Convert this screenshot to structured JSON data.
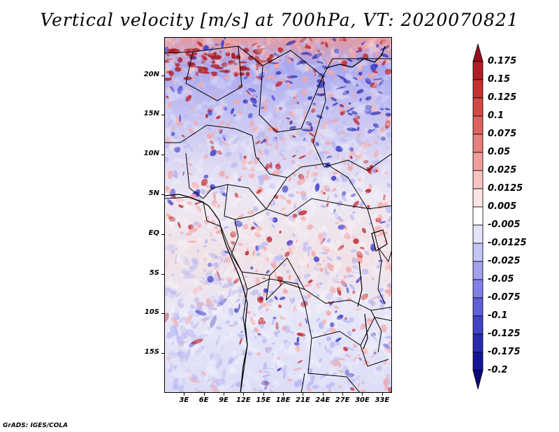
{
  "title": "Vertical velocity [m/s] at 700hPa, VT: 2020070821",
  "credit": "GrADS: IGES/COLA",
  "map": {
    "lat_labels": [
      "20N",
      "15N",
      "10N",
      "5N",
      "EQ",
      "5S",
      "10S",
      "15S"
    ],
    "lat_values": [
      20,
      15,
      10,
      5,
      0,
      -5,
      -10,
      -15
    ],
    "lon_labels": [
      "3E",
      "6E",
      "9E",
      "12E",
      "15E",
      "18E",
      "21E",
      "24E",
      "27E",
      "30E",
      "33E"
    ],
    "lon_values": [
      3,
      6,
      9,
      12,
      15,
      18,
      21,
      24,
      27,
      30,
      33
    ],
    "lat_range": [
      -20,
      24.8
    ],
    "lon_range": [
      0,
      34.5
    ]
  },
  "colorbar": {
    "labels": [
      "0.175",
      "0.15",
      "0.125",
      "0.1",
      "0.075",
      "0.05",
      "0.025",
      "0.0125",
      "0.005",
      "-0.005",
      "-0.0125",
      "-0.025",
      "-0.05",
      "-0.075",
      "-0.1",
      "-0.125",
      "-0.175",
      "-0.2"
    ],
    "colors": [
      "#9c0d1a",
      "#b01f25",
      "#c3332f",
      "#d24a43",
      "#dd6360",
      "#e77f7c",
      "#f09e9b",
      "#f7c3c1",
      "#fbe4e3",
      "#ffffff",
      "#e4e4fb",
      "#c4c4f5",
      "#a2a2ee",
      "#8080e6",
      "#6060d8",
      "#4242c4",
      "#2a2aae",
      "#14149a",
      "#0a0a80"
    ]
  },
  "palette": {
    "red_strong": "#c0262d",
    "red_light": "#f3a8a8",
    "blue_strong": "#3c3cc8",
    "blue_light": "#b8b8f2",
    "white": "#ffffff"
  }
}
